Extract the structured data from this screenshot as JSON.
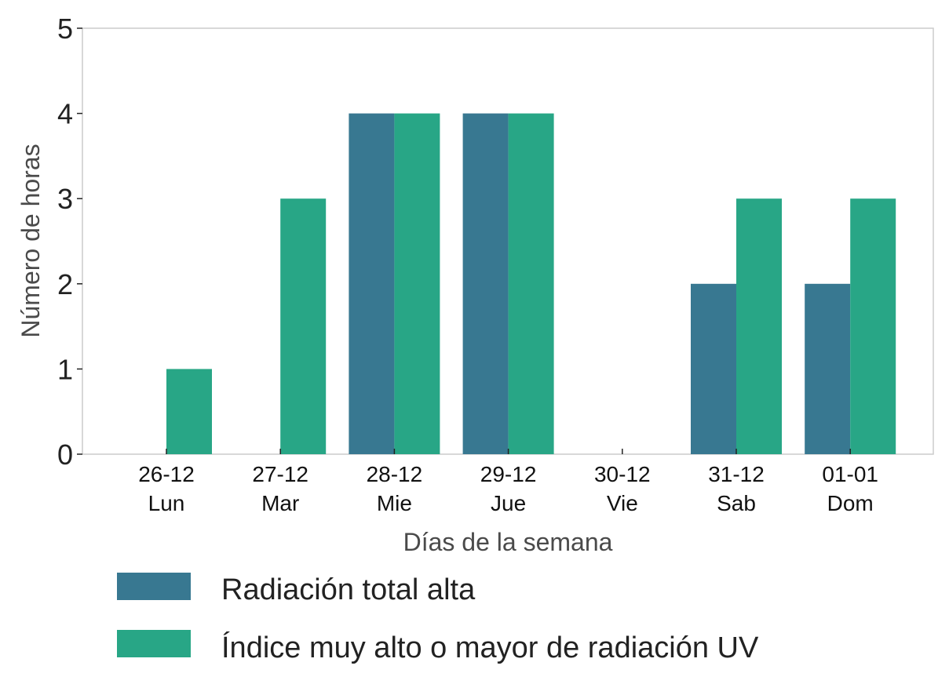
{
  "chart_data": {
    "type": "bar",
    "categories": [
      [
        "26-12",
        "Lun"
      ],
      [
        "27-12",
        "Mar"
      ],
      [
        "28-12",
        "Mie"
      ],
      [
        "29-12",
        "Jue"
      ],
      [
        "30-12",
        "Vie"
      ],
      [
        "31-12",
        "Sab"
      ],
      [
        "01-01",
        "Dom"
      ]
    ],
    "series": [
      {
        "name": "Radiación total alta",
        "color": "#387891",
        "values": [
          0,
          0,
          4,
          4,
          0,
          2,
          2
        ]
      },
      {
        "name": "Índice muy alto o mayor de radiación UV",
        "color": "#28a686",
        "values": [
          1,
          3,
          4,
          4,
          0,
          3,
          3
        ]
      }
    ],
    "xlabel": "Días de la semana",
    "ylabel": "Número de horas",
    "ylim": [
      0,
      5
    ],
    "yticks": [
      0,
      1,
      2,
      3,
      4,
      5
    ],
    "grid": false,
    "legend_position": "bottom"
  }
}
